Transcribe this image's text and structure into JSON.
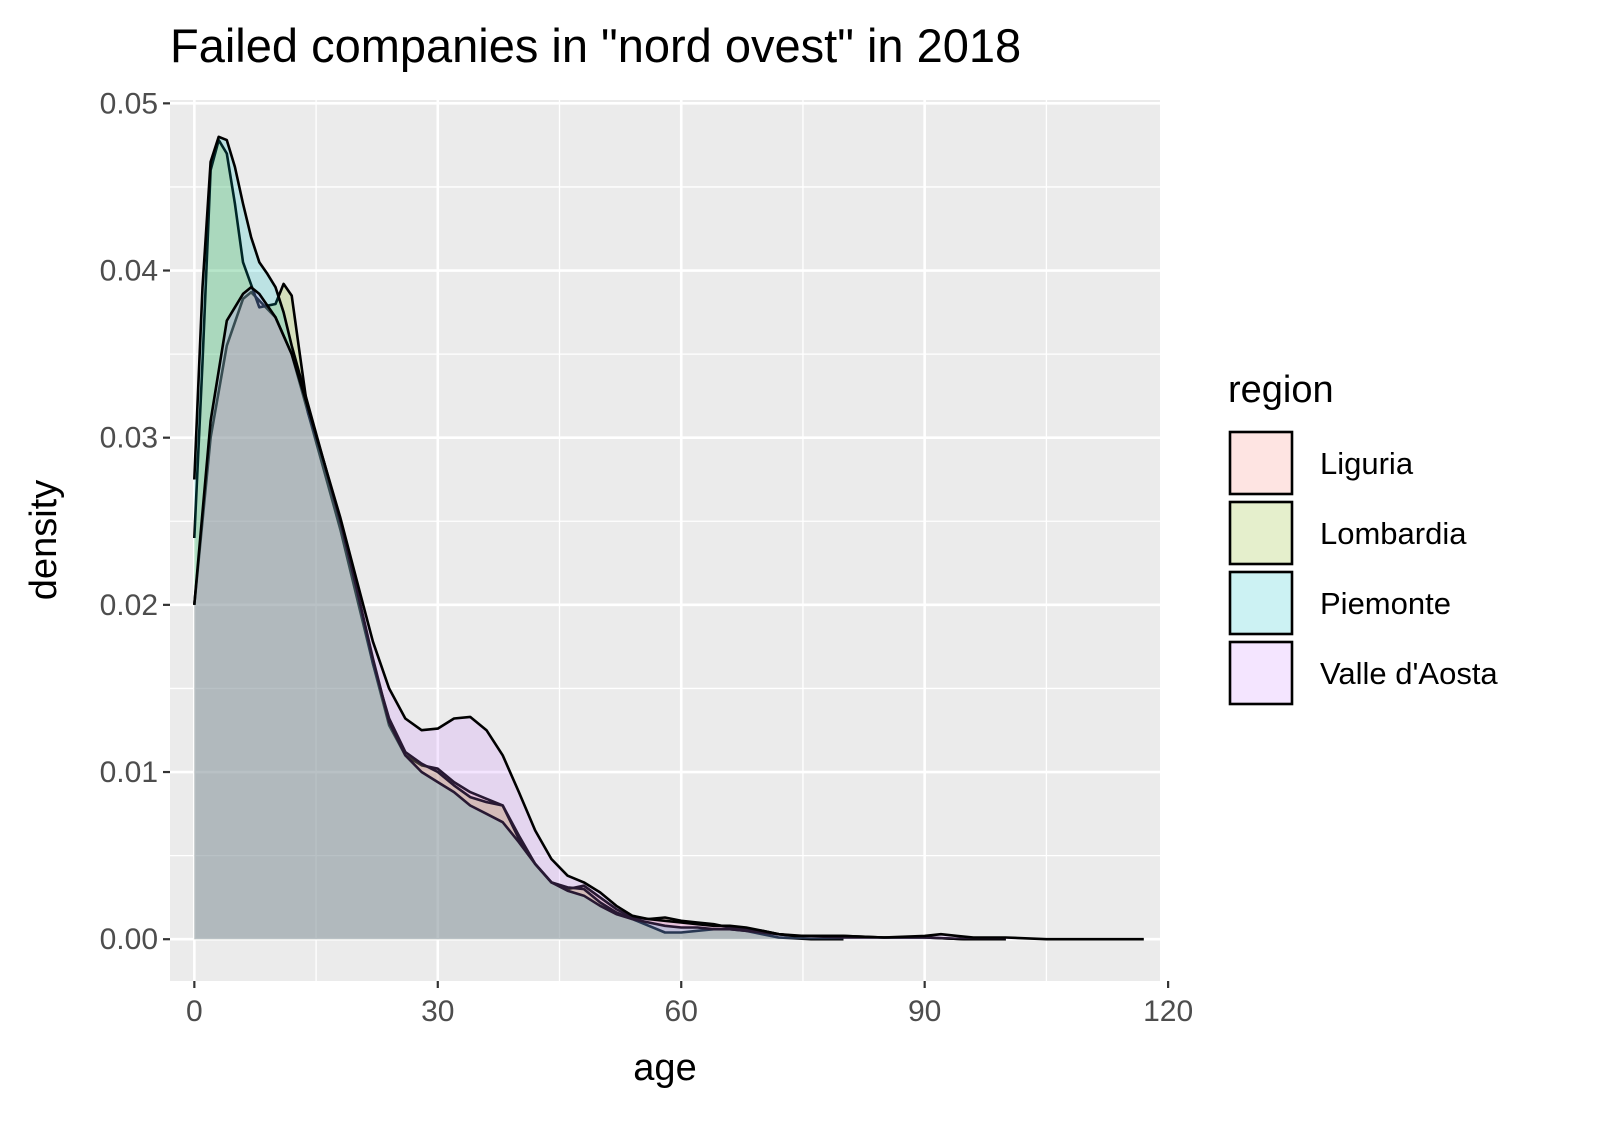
{
  "chart_data": {
    "type": "area",
    "subtype": "density",
    "title": "Failed companies in \"nord ovest\" in 2018",
    "xlabel": "age",
    "ylabel": "density",
    "xlim": [
      -3,
      119
    ],
    "ylim": [
      -0.0025,
      0.0502
    ],
    "x_ticks": [
      {
        "value": 0,
        "label": "0"
      },
      {
        "value": 30,
        "label": "30"
      },
      {
        "value": 60,
        "label": "60"
      },
      {
        "value": 90,
        "label": "90"
      },
      {
        "value": 120,
        "label": "120"
      }
    ],
    "y_ticks": [
      {
        "value": 0,
        "label": "0.00"
      },
      {
        "value": 0.01,
        "label": "0.01"
      },
      {
        "value": 0.02,
        "label": "0.02"
      },
      {
        "value": 0.03,
        "label": "0.03"
      },
      {
        "value": 0.04,
        "label": "0.04"
      },
      {
        "value": 0.05,
        "label": "0.05"
      }
    ],
    "x_minor_breaks": [
      15,
      45,
      75,
      105
    ],
    "y_minor_breaks": [
      0.005,
      0.015,
      0.025,
      0.035,
      0.045
    ],
    "grid": true,
    "panel_background": "#ebebeb",
    "fill_opacity": 0.2,
    "legend": {
      "title": "region",
      "position": "right"
    },
    "series": [
      {
        "name": "Liguria",
        "color": "#f8766d",
        "points": [
          [
            0,
            0.02
          ],
          [
            2,
            0.03
          ],
          [
            4,
            0.0355
          ],
          [
            6,
            0.0383
          ],
          [
            7,
            0.0387
          ],
          [
            8,
            0.0382
          ],
          [
            10,
            0.0372
          ],
          [
            12,
            0.035
          ],
          [
            14,
            0.0315
          ],
          [
            16,
            0.028
          ],
          [
            18,
            0.0245
          ],
          [
            20,
            0.0205
          ],
          [
            22,
            0.0165
          ],
          [
            24,
            0.0128
          ],
          [
            26,
            0.011
          ],
          [
            28,
            0.0104
          ],
          [
            30,
            0.0102
          ],
          [
            32,
            0.0094
          ],
          [
            34,
            0.0088
          ],
          [
            36,
            0.0084
          ],
          [
            38,
            0.008
          ],
          [
            40,
            0.0062
          ],
          [
            42,
            0.0045
          ],
          [
            44,
            0.0034
          ],
          [
            46,
            0.003
          ],
          [
            48,
            0.0032
          ],
          [
            50,
            0.0025
          ],
          [
            52,
            0.0018
          ],
          [
            54,
            0.0013
          ],
          [
            56,
            0.0012
          ],
          [
            58,
            0.0013
          ],
          [
            60,
            0.0011
          ],
          [
            62,
            0.001
          ],
          [
            64,
            0.0009
          ],
          [
            66,
            0.0007
          ],
          [
            68,
            0.0006
          ],
          [
            70,
            0.0005
          ],
          [
            72,
            0.0003
          ],
          [
            74,
            0.0002
          ],
          [
            76,
            0.0002
          ],
          [
            80,
            0.0002
          ],
          [
            85,
            0.0001
          ],
          [
            90,
            0.0001
          ],
          [
            95,
            0.0
          ],
          [
            100,
            0.0
          ]
        ]
      },
      {
        "name": "Lombardia",
        "color": "#7cae00",
        "points": [
          [
            0,
            0.024
          ],
          [
            1,
            0.0345
          ],
          [
            2,
            0.046
          ],
          [
            3,
            0.0478
          ],
          [
            4,
            0.047
          ],
          [
            5,
            0.044
          ],
          [
            6,
            0.0405
          ],
          [
            8,
            0.0378
          ],
          [
            10,
            0.038
          ],
          [
            11,
            0.0392
          ],
          [
            12,
            0.0385
          ],
          [
            13,
            0.035
          ],
          [
            14,
            0.0315
          ],
          [
            16,
            0.0285
          ],
          [
            18,
            0.025
          ],
          [
            20,
            0.021
          ],
          [
            22,
            0.0165
          ],
          [
            24,
            0.0132
          ],
          [
            26,
            0.0112
          ],
          [
            28,
            0.0105
          ],
          [
            30,
            0.01
          ],
          [
            32,
            0.0092
          ],
          [
            34,
            0.0085
          ],
          [
            36,
            0.0082
          ],
          [
            38,
            0.008
          ],
          [
            40,
            0.006
          ],
          [
            42,
            0.0045
          ],
          [
            44,
            0.0034
          ],
          [
            46,
            0.0031
          ],
          [
            48,
            0.003
          ],
          [
            50,
            0.0022
          ],
          [
            52,
            0.0016
          ],
          [
            54,
            0.0012
          ],
          [
            56,
            0.0008
          ],
          [
            58,
            0.0004
          ],
          [
            60,
            0.0004
          ],
          [
            62,
            0.0005
          ],
          [
            64,
            0.0006
          ],
          [
            66,
            0.0006
          ],
          [
            68,
            0.0005
          ],
          [
            70,
            0.0003
          ],
          [
            72,
            0.0001
          ],
          [
            76,
            0.0
          ],
          [
            80,
            0.0
          ]
        ]
      },
      {
        "name": "Piemonte",
        "color": "#00bfc4",
        "points": [
          [
            0,
            0.0275
          ],
          [
            1,
            0.039
          ],
          [
            2,
            0.0465
          ],
          [
            3,
            0.048
          ],
          [
            4,
            0.0478
          ],
          [
            5,
            0.0462
          ],
          [
            6,
            0.044
          ],
          [
            7,
            0.042
          ],
          [
            8,
            0.0405
          ],
          [
            9,
            0.0398
          ],
          [
            10,
            0.039
          ],
          [
            11,
            0.0375
          ],
          [
            12,
            0.0355
          ],
          [
            14,
            0.032
          ],
          [
            16,
            0.0285
          ],
          [
            18,
            0.025
          ],
          [
            20,
            0.021
          ],
          [
            22,
            0.0168
          ],
          [
            24,
            0.013
          ],
          [
            26,
            0.011
          ],
          [
            28,
            0.01
          ],
          [
            30,
            0.0094
          ],
          [
            32,
            0.0088
          ],
          [
            34,
            0.008
          ],
          [
            36,
            0.0075
          ],
          [
            38,
            0.007
          ],
          [
            40,
            0.0058
          ],
          [
            42,
            0.0045
          ],
          [
            44,
            0.0034
          ],
          [
            46,
            0.0029
          ],
          [
            48,
            0.0026
          ],
          [
            50,
            0.002
          ],
          [
            52,
            0.0015
          ],
          [
            54,
            0.0012
          ],
          [
            56,
            0.001
          ],
          [
            58,
            0.0008
          ],
          [
            60,
            0.0007
          ],
          [
            62,
            0.0007
          ],
          [
            64,
            0.0006
          ],
          [
            66,
            0.0006
          ],
          [
            68,
            0.0005
          ],
          [
            70,
            0.0004
          ],
          [
            72,
            0.0003
          ],
          [
            75,
            0.0002
          ],
          [
            80,
            0.0001
          ],
          [
            85,
            0.0001
          ],
          [
            90,
            0.0001
          ],
          [
            95,
            0.0
          ],
          [
            100,
            0.0
          ]
        ]
      },
      {
        "name": "Valle d'Aosta",
        "color": "#c77cff",
        "points": [
          [
            0,
            0.02
          ],
          [
            2,
            0.031
          ],
          [
            4,
            0.037
          ],
          [
            6,
            0.0386
          ],
          [
            7,
            0.039
          ],
          [
            8,
            0.0386
          ],
          [
            10,
            0.0372
          ],
          [
            12,
            0.035
          ],
          [
            14,
            0.0318
          ],
          [
            16,
            0.0285
          ],
          [
            18,
            0.0252
          ],
          [
            20,
            0.0215
          ],
          [
            22,
            0.0178
          ],
          [
            24,
            0.015
          ],
          [
            26,
            0.0132
          ],
          [
            28,
            0.0125
          ],
          [
            30,
            0.0126
          ],
          [
            32,
            0.0132
          ],
          [
            34,
            0.0133
          ],
          [
            36,
            0.0125
          ],
          [
            38,
            0.011
          ],
          [
            40,
            0.0088
          ],
          [
            42,
            0.0065
          ],
          [
            44,
            0.0048
          ],
          [
            46,
            0.0038
          ],
          [
            48,
            0.0034
          ],
          [
            50,
            0.0028
          ],
          [
            52,
            0.002
          ],
          [
            54,
            0.0014
          ],
          [
            56,
            0.0012
          ],
          [
            58,
            0.0011
          ],
          [
            60,
            0.001
          ],
          [
            62,
            0.0009
          ],
          [
            64,
            0.0008
          ],
          [
            66,
            0.0008
          ],
          [
            68,
            0.0007
          ],
          [
            70,
            0.0005
          ],
          [
            72,
            0.0003
          ],
          [
            74,
            0.0002
          ],
          [
            76,
            0.0002
          ],
          [
            80,
            0.0002
          ],
          [
            85,
            0.0001
          ],
          [
            90,
            0.0002
          ],
          [
            92,
            0.0003
          ],
          [
            94,
            0.0002
          ],
          [
            96,
            0.0001
          ],
          [
            100,
            0.0001
          ],
          [
            105,
            0.0
          ],
          [
            110,
            0.0
          ],
          [
            117,
            0.0
          ]
        ]
      }
    ]
  }
}
